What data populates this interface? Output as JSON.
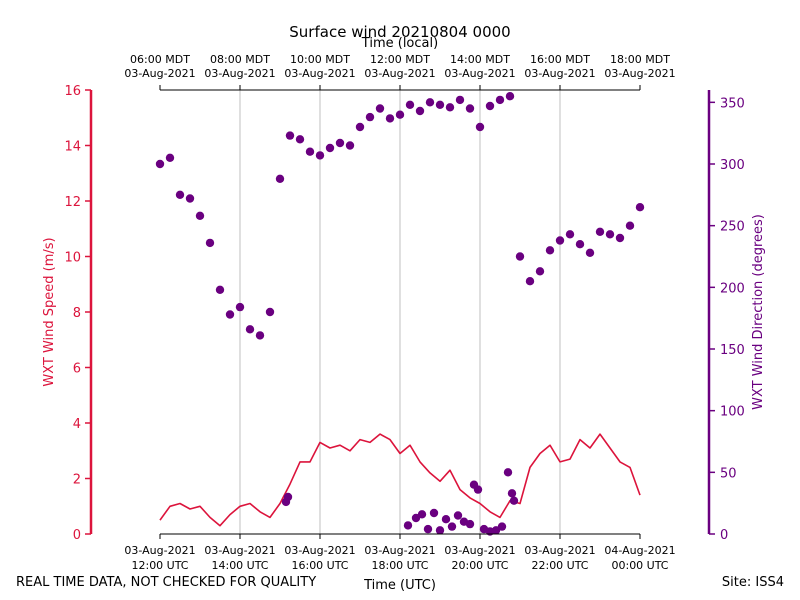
{
  "chart_data": {
    "type": "line",
    "title": "Surface wind 20210804 0000",
    "top_axis_label": "Time (local)",
    "xlabel": "Time (UTC)",
    "ylabel_left": "WXT Wind Speed (m/s)",
    "ylabel_right": "WXT Wind Direction (degrees)",
    "xlim_hours_utc": [
      12,
      24
    ],
    "ylim_left": [
      0,
      16
    ],
    "ylim_right": [
      0,
      360
    ],
    "left_ticks": [
      "0",
      "2",
      "4",
      "6",
      "8",
      "10",
      "12",
      "14",
      "16"
    ],
    "right_ticks": [
      "0",
      "50",
      "100",
      "150",
      "200",
      "250",
      "300",
      "350"
    ],
    "bottom_ticks": [
      {
        "line1": "03-Aug-2021",
        "line2": "12:00 UTC"
      },
      {
        "line1": "03-Aug-2021",
        "line2": "14:00 UTC"
      },
      {
        "line1": "03-Aug-2021",
        "line2": "16:00 UTC"
      },
      {
        "line1": "03-Aug-2021",
        "line2": "18:00 UTC"
      },
      {
        "line1": "03-Aug-2021",
        "line2": "20:00 UTC"
      },
      {
        "line1": "03-Aug-2021",
        "line2": "22:00 UTC"
      },
      {
        "line1": "04-Aug-2021",
        "line2": "00:00 UTC"
      }
    ],
    "top_ticks": [
      {
        "line1": "06:00 MDT",
        "line2": "03-Aug-2021"
      },
      {
        "line1": "08:00 MDT",
        "line2": "03-Aug-2021"
      },
      {
        "line1": "10:00 MDT",
        "line2": "03-Aug-2021"
      },
      {
        "line1": "12:00 MDT",
        "line2": "03-Aug-2021"
      },
      {
        "line1": "14:00 MDT",
        "line2": "03-Aug-2021"
      },
      {
        "line1": "16:00 MDT",
        "line2": "03-Aug-2021"
      },
      {
        "line1": "18:00 MDT",
        "line2": "03-Aug-2021"
      }
    ],
    "grid": "vertical",
    "speed_color": "#dc143c",
    "direction_color": "#6a0080",
    "series": [
      {
        "name": "Wind Speed (m/s)",
        "type": "line",
        "axis": "left",
        "x": [
          12.0,
          12.25,
          12.5,
          12.75,
          13.0,
          13.25,
          13.5,
          13.75,
          14.0,
          14.25,
          14.5,
          14.75,
          15.0,
          15.25,
          15.5,
          15.75,
          16.0,
          16.25,
          16.5,
          16.75,
          17.0,
          17.25,
          17.5,
          17.75,
          18.0,
          18.25,
          18.5,
          18.75,
          19.0,
          19.25,
          19.5,
          19.75,
          20.0,
          20.25,
          20.5,
          20.75,
          21.0,
          21.25,
          21.5,
          21.75,
          22.0,
          22.25,
          22.5,
          22.75,
          23.0,
          23.25,
          23.5,
          23.75,
          24.0
        ],
        "y": [
          0.5,
          1.0,
          1.1,
          0.9,
          1.0,
          0.6,
          0.3,
          0.7,
          1.0,
          1.1,
          0.8,
          0.6,
          1.1,
          1.8,
          2.6,
          2.6,
          3.3,
          3.1,
          3.2,
          3.0,
          3.4,
          3.3,
          3.6,
          3.4,
          2.9,
          3.2,
          2.6,
          2.2,
          1.9,
          2.3,
          1.6,
          1.3,
          1.1,
          0.8,
          0.6,
          1.2,
          1.1,
          2.4,
          2.9,
          3.2,
          2.6,
          2.7,
          3.4,
          3.1,
          3.6,
          3.1,
          2.6,
          2.4,
          1.4
        ]
      },
      {
        "name": "Wind Direction (degrees)",
        "type": "scatter",
        "axis": "right",
        "x": [
          12.0,
          12.25,
          12.5,
          12.75,
          13.0,
          13.25,
          13.5,
          13.75,
          14.0,
          14.25,
          14.5,
          14.75,
          15.0,
          15.25,
          15.5,
          15.75,
          16.0,
          16.25,
          16.5,
          16.75,
          17.0,
          17.25,
          17.5,
          17.75,
          18.0,
          18.25,
          18.5,
          18.75,
          19.0,
          19.25,
          19.5,
          19.75,
          20.0,
          20.25,
          20.5,
          20.75,
          21.0,
          21.25,
          21.5,
          21.75,
          22.0,
          22.25,
          22.5,
          22.75,
          23.0,
          23.25,
          23.5,
          23.75,
          24.0
        ],
        "y": [
          300,
          305,
          275,
          272,
          258,
          236,
          198,
          178,
          184,
          166,
          161,
          180,
          288,
          323,
          320,
          310,
          307,
          313,
          317,
          315,
          330,
          338,
          345,
          337,
          340,
          348,
          343,
          350,
          348,
          346,
          352,
          345,
          330,
          347,
          352,
          355,
          225,
          205,
          213,
          230,
          238,
          243,
          235,
          228,
          245,
          243,
          240,
          250,
          265
        ]
      },
      {
        "name": "Wind Direction (degrees), near 0",
        "type": "scatter",
        "axis": "right",
        "x": [
          15.15,
          15.2,
          18.2,
          18.4,
          18.55,
          18.7,
          18.85,
          19.0,
          19.15,
          19.3,
          19.45,
          19.6,
          19.75,
          19.85,
          19.95,
          20.1,
          20.25,
          20.4,
          20.55,
          20.7,
          20.8,
          20.85
        ],
        "y": [
          26,
          30,
          7,
          13,
          16,
          4,
          17,
          3,
          12,
          6,
          15,
          10,
          8,
          40,
          36,
          4,
          2,
          3,
          6,
          50,
          33,
          27
        ]
      }
    ]
  },
  "footer": {
    "left_note": "REAL TIME DATA, NOT CHECKED FOR QUALITY",
    "site": "Site: ISS4"
  }
}
